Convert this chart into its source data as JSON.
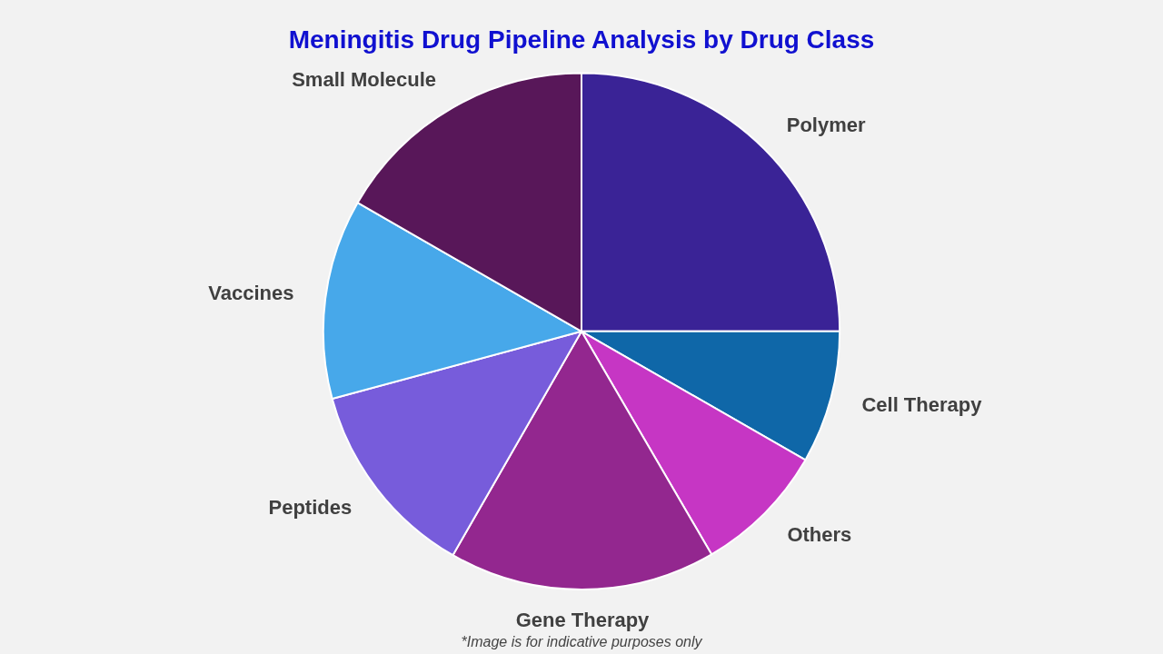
{
  "chart_data": {
    "type": "pie",
    "title": "Meningitis Drug Pipeline Analysis by Drug Class",
    "categories": [
      "Polymer",
      "Cell Therapy",
      "Others",
      "Gene Therapy",
      "Peptides",
      "Vaccines",
      "Small Molecule"
    ],
    "values": [
      25,
      8.3,
      8.3,
      16.7,
      12.5,
      12.5,
      16.7
    ],
    "colors": [
      "#3a2396",
      "#0f67a8",
      "#c636c4",
      "#93278f",
      "#775cdb",
      "#47a8ea",
      "#581759"
    ],
    "legend": false,
    "annotations": [
      "*Image is for indicative purposes only"
    ]
  }
}
